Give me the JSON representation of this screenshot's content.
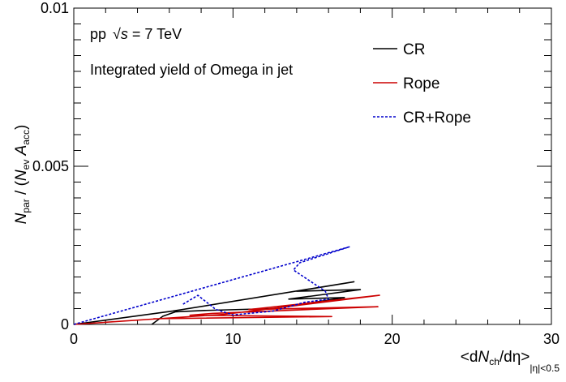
{
  "chart_data": {
    "type": "line",
    "xlim": [
      0,
      30
    ],
    "ylim": [
      0,
      0.01
    ],
    "x_ticks": [
      "0",
      "10",
      "20",
      "30"
    ],
    "y_ticks": [
      "0",
      "0.005",
      "0.01"
    ],
    "ylabel": "N_par / (N_ev A_acc)",
    "xlabel": "<dN_ch/dη>_|η|<0.5",
    "annotations": {
      "energy_pre": "pp",
      "energy_sqrt": "√",
      "energy_s": "s",
      "energy_post": " = 7 TeV",
      "description": "Integrated yield of Omega in jet"
    },
    "legend_position": "top-right",
    "grid": false,
    "series": [
      {
        "name": "CR",
        "color": "#000000",
        "style": "solid",
        "points": [
          [
            0,
            0
          ],
          [
            6.2,
            0.00042
          ],
          [
            17.6,
            0.00135
          ],
          [
            14,
            0.00105
          ],
          [
            18,
            0.0011
          ],
          [
            13.5,
            0.0008
          ],
          [
            17,
            0.00085
          ],
          [
            12.5,
            0.0005
          ],
          [
            8.2,
            0.00044
          ],
          [
            6.4,
            0.0004
          ],
          [
            5.6,
            0.00026
          ],
          [
            4.9,
            0
          ]
        ]
      },
      {
        "name": "Rope",
        "color": "#cc0000",
        "style": "solid",
        "points": [
          [
            0,
            0
          ],
          [
            9.5,
            0.00032
          ],
          [
            19.2,
            0.00092
          ],
          [
            11,
            0.00047
          ],
          [
            19.1,
            0.00056
          ],
          [
            8.7,
            0.00035
          ],
          [
            7.3,
            0.00029
          ],
          [
            16.2,
            0.00025
          ],
          [
            5,
            0.00018
          ]
        ]
      },
      {
        "name": "CR+Rope",
        "color": "#0000cc",
        "style": "dotted",
        "points": [
          [
            0,
            0
          ],
          [
            17.3,
            0.00245
          ],
          [
            14.2,
            0.00195
          ],
          [
            13.8,
            0.00172
          ],
          [
            15.8,
            0.00105
          ],
          [
            16,
            0.0008
          ],
          [
            14.5,
            0.0007
          ],
          [
            12.5,
            0.00042
          ],
          [
            10,
            0.0003
          ],
          [
            8.9,
            0.00048
          ],
          [
            7.8,
            0.00092
          ],
          [
            6.8,
            0.00062
          ]
        ]
      }
    ]
  }
}
